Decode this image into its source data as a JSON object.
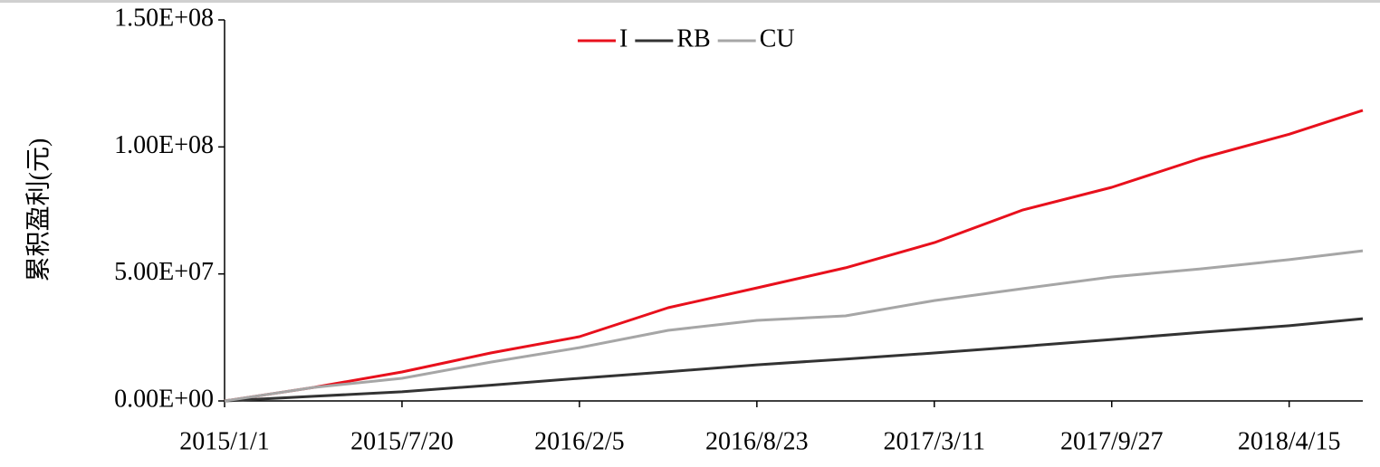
{
  "chart_data": {
    "type": "line",
    "y_label": "累积盈利(元)",
    "x": [
      "2015/1/1",
      "2015/4/11",
      "2015/7/20",
      "2015/10/28",
      "2016/2/5",
      "2016/5/15",
      "2016/8/23",
      "2016/12/1",
      "2017/3/11",
      "2017/6/19",
      "2017/9/27",
      "2018/1/5",
      "2018/4/15",
      "2018/7/7"
    ],
    "series": [
      {
        "name": "I",
        "color": "#e8101c",
        "values": [
          0,
          5300000,
          11400000,
          18900000,
          25300000,
          36700000,
          44500000,
          52400000,
          62300000,
          75200000,
          84100000,
          95500000,
          105000000,
          114400000
        ]
      },
      {
        "name": "RB",
        "color": "#333333",
        "values": [
          0,
          1800000,
          3600000,
          6200000,
          8900000,
          11500000,
          14200000,
          16500000,
          18900000,
          21500000,
          24200000,
          27000000,
          29600000,
          32400000
        ]
      },
      {
        "name": "CU",
        "color": "#a6a6a6",
        "values": [
          0,
          5300000,
          8900000,
          15300000,
          21000000,
          27800000,
          31700000,
          33500000,
          39500000,
          44200000,
          48800000,
          52000000,
          55600000,
          59100000
        ]
      }
    ],
    "xlim": [
      "2015/1/1",
      "2018/7/7"
    ],
    "xticks": [
      "2015/1/1",
      "2015/7/20",
      "2016/2/5",
      "2016/8/23",
      "2017/3/11",
      "2017/9/27",
      "2018/4/15"
    ],
    "ylim": [
      0,
      150000000
    ],
    "yticks": [
      {
        "value": 0,
        "label": "0.00E+00"
      },
      {
        "value": 50000000,
        "label": "5.00E+07"
      },
      {
        "value": 100000000,
        "label": "1.00E+08"
      },
      {
        "value": 150000000,
        "label": "1.50E+08"
      }
    ],
    "legend": "top"
  }
}
